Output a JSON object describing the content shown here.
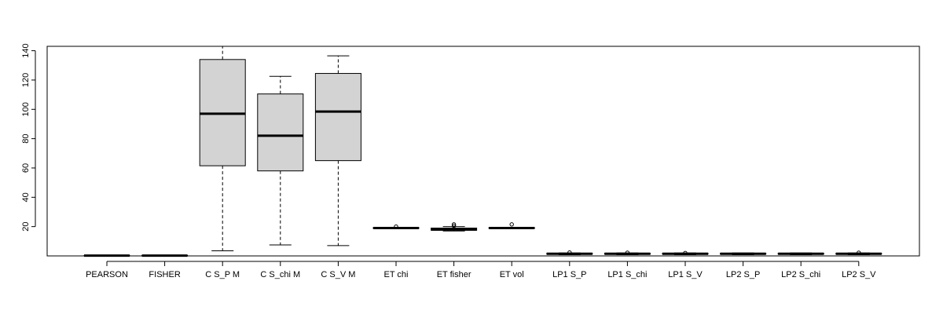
{
  "chart_data": {
    "type": "boxplot",
    "title": "",
    "xlabel": "",
    "ylabel": "",
    "ylim": [
      0,
      143
    ],
    "yticks": [
      20,
      40,
      60,
      80,
      100,
      120,
      140
    ],
    "grid": false,
    "categories": [
      "PEARSON",
      "FISHER",
      "C S_P M",
      "C S_chi M",
      "C S_V M",
      "ET chi",
      "ET fisher",
      "ET vol",
      "LP1 S_P",
      "LP1 S_chi",
      "LP1 S_V",
      "LP2 S_P",
      "LP2 S_chi",
      "LP2 S_V"
    ],
    "boxes": [
      {
        "min": 0.0,
        "q1": 0.1,
        "median": 0.2,
        "q3": 0.3,
        "max": 0.5,
        "outliers": []
      },
      {
        "min": 0.0,
        "q1": 0.1,
        "median": 0.2,
        "q3": 0.3,
        "max": 0.5,
        "outliers": []
      },
      {
        "min": 3.5,
        "q1": 61.5,
        "median": 97.0,
        "q3": 134.0,
        "max": 143.0,
        "outliers": []
      },
      {
        "min": 7.5,
        "q1": 58.0,
        "median": 82.0,
        "q3": 110.5,
        "max": 122.5,
        "outliers": []
      },
      {
        "min": 7.0,
        "q1": 65.0,
        "median": 98.5,
        "q3": 124.5,
        "max": 136.5,
        "outliers": []
      },
      {
        "min": 18.5,
        "q1": 18.8,
        "median": 19.0,
        "q3": 19.3,
        "max": 19.5,
        "outliers": [
          20.0
        ]
      },
      {
        "min": 17.0,
        "q1": 17.5,
        "median": 18.0,
        "q3": 19.0,
        "max": 20.0,
        "outliers": [
          20.5,
          21.5
        ]
      },
      {
        "min": 18.5,
        "q1": 18.8,
        "median": 19.0,
        "q3": 19.3,
        "max": 19.5,
        "outliers": [
          21.5
        ]
      },
      {
        "min": 0.8,
        "q1": 1.2,
        "median": 1.5,
        "q3": 1.8,
        "max": 2.0,
        "outliers": [
          2.3
        ]
      },
      {
        "min": 0.8,
        "q1": 1.2,
        "median": 1.5,
        "q3": 1.8,
        "max": 2.0,
        "outliers": [
          2.2
        ]
      },
      {
        "min": 0.8,
        "q1": 1.2,
        "median": 1.5,
        "q3": 1.8,
        "max": 2.0,
        "outliers": [
          2.0
        ]
      },
      {
        "min": 0.8,
        "q1": 1.2,
        "median": 1.5,
        "q3": 1.8,
        "max": 2.0,
        "outliers": []
      },
      {
        "min": 0.8,
        "q1": 1.2,
        "median": 1.5,
        "q3": 1.8,
        "max": 2.0,
        "outliers": []
      },
      {
        "min": 0.8,
        "q1": 1.2,
        "median": 1.5,
        "q3": 1.8,
        "max": 2.0,
        "outliers": [
          2.2
        ]
      }
    ]
  }
}
